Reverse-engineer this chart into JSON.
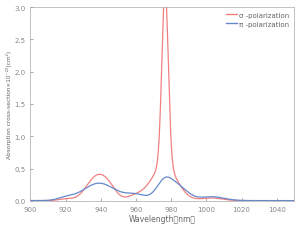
{
  "title": "",
  "xlabel": "Wavelength（nm）",
  "ylabel": "Absorption cross-section×10⁻²⁰(cm²)",
  "xlim": [
    900,
    1050
  ],
  "ylim": [
    0,
    3.0
  ],
  "yticks": [
    0,
    0.5,
    1.0,
    1.5,
    2.0,
    2.5,
    3.0
  ],
  "xticks": [
    900,
    920,
    940,
    960,
    980,
    1000,
    1020,
    1040
  ],
  "sigma_color": "#f08080",
  "pi_color": "#6688cc",
  "legend_sigma": "σ -polarization",
  "legend_pi": "π -polarization",
  "bg_color": "#ffffff",
  "fig_bg": "#ffffff"
}
